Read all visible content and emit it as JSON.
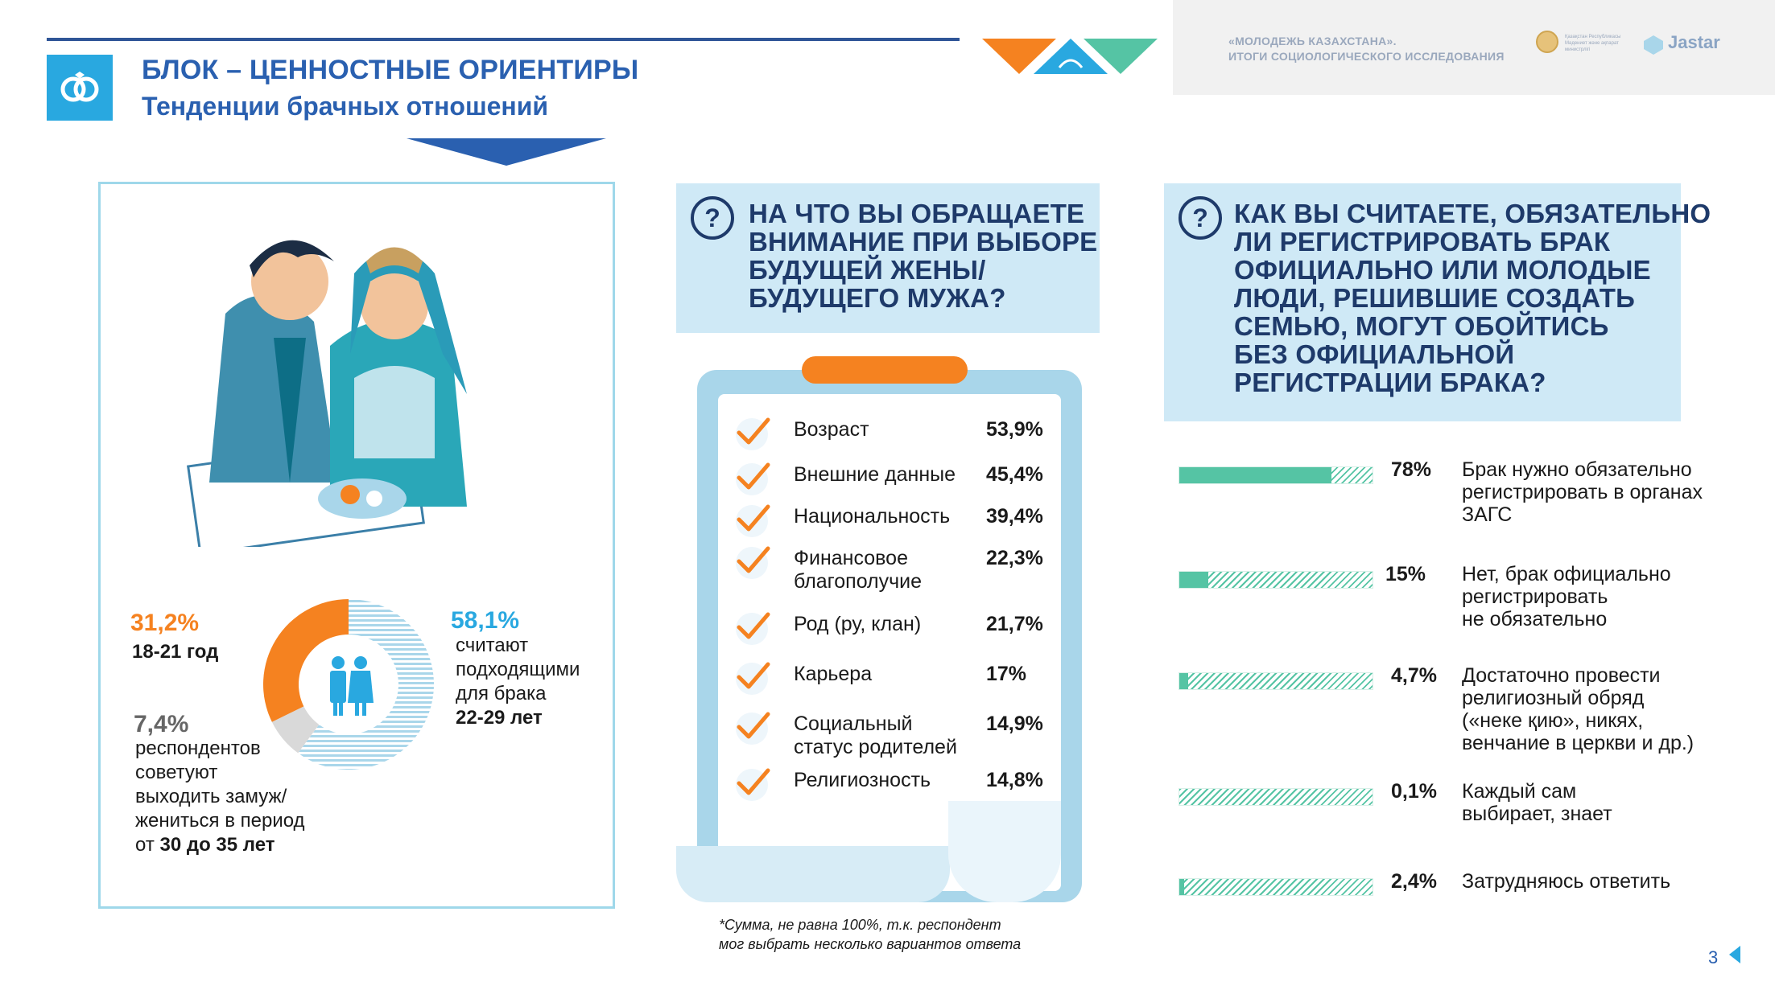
{
  "header": {
    "title": "БЛОК – ЦЕННОСТНЫЕ ОРИЕНТИРЫ",
    "subtitle": "Тенденции брачных отношений",
    "report_title_line1": "«МОЛОДЕЖЬ КАЗАХСТАНА».",
    "report_title_line2": "ИТОГИ СОЦИОЛОГИЧЕСКОГО ИССЛЕДОВАНИЯ",
    "brand": "Jastar",
    "emblem_text": "Қазақстан Республикасы Мәдениет және ақпарат министрлігі"
  },
  "left_panel": {
    "stat_a_pct": "31,2%",
    "stat_a_label": "18-21 год",
    "stat_b_pct": "58,1%",
    "stat_b_line1": "считают",
    "stat_b_line2": "подходящими",
    "stat_b_line3": "для брака",
    "stat_b_line4": "22-29 лет",
    "stat_c_pct": "7,4%",
    "stat_c_line1": "респондентов",
    "stat_c_line2": "советуют",
    "stat_c_line3": "выходить замуж/",
    "stat_c_line4": "жениться в период",
    "stat_c_line5_prefix": "от",
    "stat_c_line5_bold": "30 до 35 лет"
  },
  "question1": {
    "icon": "?",
    "text_lines": [
      "НА ЧТО ВЫ ОБРАЩАЕТЕ",
      "ВНИМАНИЕ ПРИ ВЫБОРЕ",
      "БУДУЩЕЙ ЖЕНЫ/",
      "БУДУЩЕГО МУЖА?"
    ]
  },
  "checklist": [
    {
      "label1": "Возраст",
      "label2": "",
      "value": "53,9%"
    },
    {
      "label1": "Внешние данные",
      "label2": "",
      "value": "45,4%"
    },
    {
      "label1": "Национальность",
      "label2": "",
      "value": "39,4%"
    },
    {
      "label1": "Финансовое",
      "label2": "благополучие",
      "value": "22,3%"
    },
    {
      "label1": "Род (ру, клан)",
      "label2": "",
      "value": "21,7%"
    },
    {
      "label1": "Карьера",
      "label2": "",
      "value": "17%"
    },
    {
      "label1": "Социальный",
      "label2": "статус родителей",
      "value": "14,9%"
    },
    {
      "label1": "Религиозность",
      "label2": "",
      "value": "14,8%"
    }
  ],
  "footnote_line1": "*Сумма, не равна 100%, т.к. респондент",
  "footnote_line2": "мог выбрать несколько вариантов ответа",
  "question2": {
    "icon": "?",
    "text_lines": [
      "КАК ВЫ СЧИТАЕТЕ, ОБЯЗАТЕЛЬНО",
      "ЛИ РЕГИСТРИРОВАТЬ БРАК",
      "ОФИЦИАЛЬНО ИЛИ МОЛОДЫЕ",
      "ЛЮДИ, РЕШИВШИЕ СОЗДАТЬ",
      "СЕМЬЮ, МОГУТ ОБОЙТИСЬ",
      "БЕЗ ОФИЦИАЛЬНОЙ",
      "РЕГИСТРАЦИИ БРАКА?"
    ]
  },
  "chart_data": {
    "type": "bar",
    "orientation": "horizontal",
    "categories": [
      "Брак нужно обязательно регистрировать в органах ЗАГС",
      "Нет, брак официально регистрировать не обязательно",
      "Достаточно провести религиозный обряд («неке қию», никях, венчание в церкви и др.)",
      "Каждый сам выбирает, знает",
      "Затрудняюсь ответить"
    ],
    "values": [
      78,
      15,
      4.7,
      0.1,
      2.4
    ],
    "value_labels": [
      "78%",
      "15%",
      "4,7%",
      "0,1%",
      "2,4%"
    ],
    "label_lines": [
      [
        "Брак нужно обязательно",
        "регистрировать в органах",
        "ЗАГС"
      ],
      [
        "Нет, брак официально",
        "регистрировать",
        "не обязательно"
      ],
      [
        "Достаточно провести",
        "религиозный обряд",
        "(«неке қию», никях,",
        "венчание в церкви и др.)"
      ],
      [
        "Каждый сам",
        "выбирает, знает"
      ],
      [
        "Затрудняюсь ответить"
      ]
    ],
    "xlim": [
      0,
      100
    ],
    "colors": {
      "fill": "#55c4a4"
    }
  },
  "donut": {
    "segments": [
      {
        "name": "22-29 лет",
        "value": 58.1,
        "color": "#a9d6ea"
      },
      {
        "name": "30-35 лет",
        "value": 7.4,
        "color": "#d9d9d9"
      },
      {
        "name": "18-21 год",
        "value": 31.2,
        "color": "#f58220"
      }
    ]
  },
  "page_number": "3",
  "colors": {
    "accent_blue": "#2a60b0",
    "orange": "#f58220",
    "teal": "#55c4a4",
    "light_blue": "#29a8e0"
  }
}
